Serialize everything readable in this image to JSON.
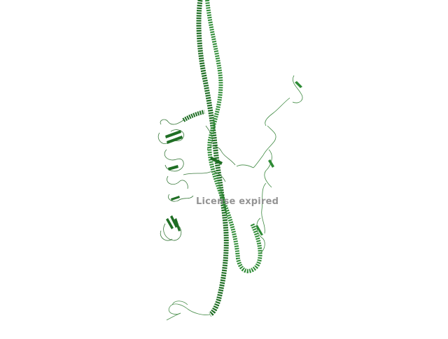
{
  "scene": {
    "subject": "protein-ribbon-structure",
    "background_color": "#ffffff",
    "ribbon_dark": "#1f6e24",
    "ribbon_mid": "#2e8b35",
    "ribbon_light": "#8fbf8f"
  },
  "watermark": {
    "text": "License expired"
  }
}
